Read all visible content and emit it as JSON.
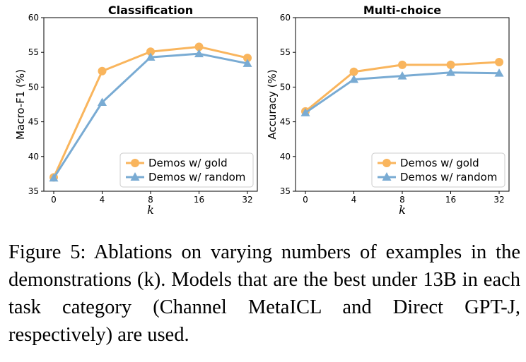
{
  "figure_number": "Figure 5:",
  "caption_text": "Ablations on varying numbers of examples in the demonstrations (k). Models that are the best under 13B in each task category (Channel MetaICL and Direct GPT-J, respectively) are used.",
  "colors": {
    "gold": "#F9B55D",
    "random": "#79ABD3"
  },
  "chart_data": [
    {
      "type": "line",
      "title": "Classification",
      "xlabel": "k",
      "ylabel": "Macro-F1 (%)",
      "categories": [
        "0",
        "4",
        "8",
        "16",
        "32"
      ],
      "ylim": [
        35,
        60
      ],
      "yticks": [
        35,
        40,
        45,
        50,
        55,
        60
      ],
      "legend": "lower-right",
      "series": [
        {
          "name": "Demos w/ gold",
          "marker": "circle",
          "values": [
            37.0,
            52.3,
            55.1,
            55.8,
            54.2
          ]
        },
        {
          "name": "Demos w/ random",
          "marker": "triangle",
          "values": [
            36.9,
            47.8,
            54.3,
            54.8,
            53.4
          ]
        }
      ]
    },
    {
      "type": "line",
      "title": "Multi-choice",
      "xlabel": "k",
      "ylabel": "Accuracy (%)",
      "categories": [
        "0",
        "4",
        "8",
        "16",
        "32"
      ],
      "ylim": [
        35,
        60
      ],
      "yticks": [
        35,
        40,
        45,
        50,
        55,
        60
      ],
      "legend": "lower-right",
      "series": [
        {
          "name": "Demos w/ gold",
          "marker": "circle",
          "values": [
            46.5,
            52.2,
            53.2,
            53.2,
            53.6
          ]
        },
        {
          "name": "Demos w/ random",
          "marker": "triangle",
          "values": [
            46.3,
            51.1,
            51.6,
            52.1,
            52.0
          ]
        }
      ]
    }
  ]
}
